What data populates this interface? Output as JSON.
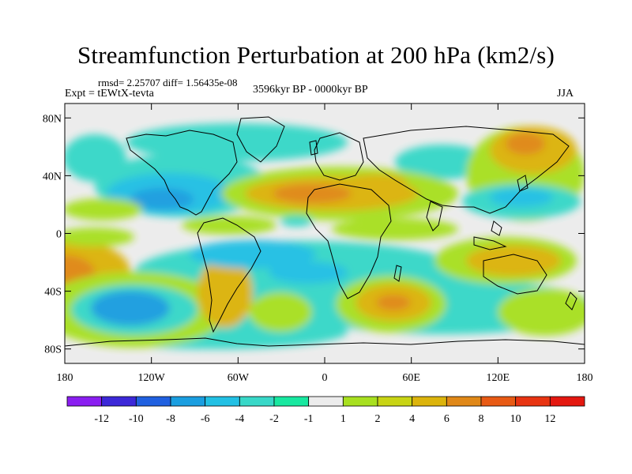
{
  "title": "Streamfunction Perturbation at 200 hPa (km2/s)",
  "stats_line": "rmsd= 2.25707 diff= 1.56435e-08",
  "experiment_label": "Expt = tEWtX-tevta",
  "period_label": "3596kyr BP - 0000kyr BP",
  "season_label": "JJA",
  "map": {
    "y_ticks": [
      {
        "label": "80N",
        "lat": 80
      },
      {
        "label": "40N",
        "lat": 40
      },
      {
        "label": "0",
        "lat": 0
      },
      {
        "label": "40S",
        "lat": -40
      },
      {
        "label": "80S",
        "lat": -80
      }
    ],
    "x_ticks": [
      {
        "label": "180",
        "lon": -180
      },
      {
        "label": "120W",
        "lon": -120
      },
      {
        "label": "60W",
        "lon": -60
      },
      {
        "label": "0",
        "lon": 0
      },
      {
        "label": "60E",
        "lon": 60
      },
      {
        "label": "120E",
        "lon": 120
      },
      {
        "label": "180",
        "lon": 180
      }
    ],
    "lon_range": [
      -180,
      180
    ],
    "lat_range": [
      -90,
      90
    ]
  },
  "colorbar": {
    "colors": [
      "#8a1ef0",
      "#3c28d8",
      "#2060e0",
      "#1a9ee0",
      "#22c0e4",
      "#38d8c8",
      "#18e8a0",
      "#ececec",
      "#a8e020",
      "#c8d414",
      "#dcb40c",
      "#e08818",
      "#e85a14",
      "#e83412",
      "#e41810"
    ],
    "labels": [
      "-12",
      "-10",
      "-8",
      "-6",
      "-4",
      "-2",
      "-1",
      "1",
      "2",
      "4",
      "6",
      "8",
      "10",
      "12"
    ]
  }
}
